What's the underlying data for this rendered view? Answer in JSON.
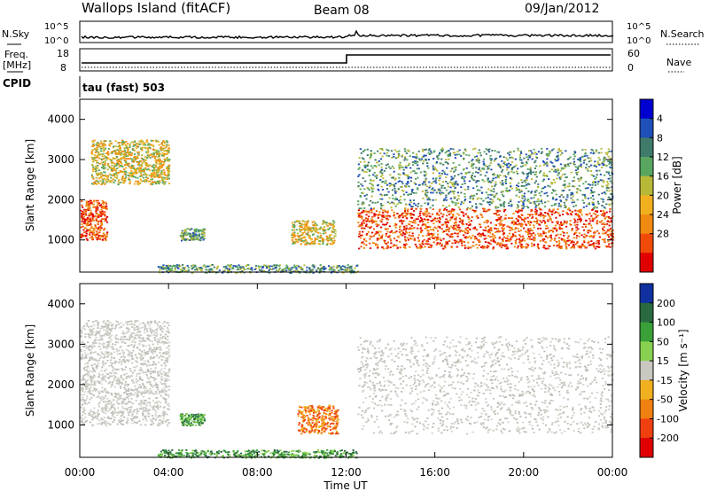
{
  "header": {
    "title": "Wallops Island (fitACF)",
    "beam": "Beam 08",
    "date": "09/Jan/2012"
  },
  "noise_panel": {
    "left_label": "N.Sky",
    "right_label": "N.Search",
    "left_ticks": [
      "10^5",
      "10^0"
    ],
    "right_ticks": [
      "10^5",
      "10^0"
    ]
  },
  "freq_panel": {
    "left_label_line1": "Freq.",
    "left_label_line2": "[MHz]",
    "right_label": "Nave",
    "left_ticks": [
      "18",
      "8"
    ],
    "right_ticks": [
      "60",
      "0"
    ],
    "freq_step_time": "12:00"
  },
  "cpid": {
    "label": "CPID",
    "mode": "tau (fast) 503"
  },
  "chart_data": [
    {
      "type": "heatmap",
      "name": "Power",
      "ylabel": "Slant Range [km]",
      "xlabel": "",
      "y_ticks": [
        "1000",
        "2000",
        "3000",
        "4000"
      ],
      "ylim": [
        200,
        4500
      ],
      "xlim": [
        0,
        24
      ],
      "colorbar_label": "Power [dB]",
      "colorbar_ticks": [
        "4",
        "8",
        "12",
        "16",
        "20",
        "24",
        "28"
      ],
      "colorbar_colors": [
        "#0000d0",
        "#1f4fb8",
        "#3f7a6a",
        "#58a660",
        "#b8b838",
        "#f0b020",
        "#f08a10",
        "#f04a08",
        "#e00000"
      ],
      "echo_regions": [
        {
          "t_start": 0.0,
          "t_end": 1.2,
          "r_min": 1000,
          "r_max": 2000,
          "level": "strong"
        },
        {
          "t_start": 0.5,
          "t_end": 4.0,
          "r_min": 2400,
          "r_max": 3500,
          "level": "medium"
        },
        {
          "t_start": 4.5,
          "t_end": 5.6,
          "r_min": 1000,
          "r_max": 1300,
          "level": "weak"
        },
        {
          "t_start": 9.5,
          "t_end": 11.5,
          "r_min": 900,
          "r_max": 1500,
          "level": "medium"
        },
        {
          "t_start": 12.5,
          "t_end": 24.0,
          "r_min": 800,
          "r_max": 1800,
          "level": "strong"
        },
        {
          "t_start": 12.5,
          "t_end": 24.0,
          "r_min": 1800,
          "r_max": 3300,
          "level": "weak"
        },
        {
          "t_start": 3.5,
          "t_end": 12.5,
          "r_min": 200,
          "r_max": 400,
          "level": "weak"
        }
      ]
    },
    {
      "type": "heatmap",
      "name": "Velocity",
      "ylabel": "Slant Range [km]",
      "xlabel": "Time UT",
      "x_ticks": [
        "00:00",
        "04:00",
        "08:00",
        "12:00",
        "16:00",
        "20:00",
        "00:00"
      ],
      "y_ticks": [
        "1000",
        "2000",
        "3000",
        "4000"
      ],
      "ylim": [
        200,
        4500
      ],
      "xlim": [
        0,
        24
      ],
      "colorbar_label": "Velocity [m s⁻¹]",
      "colorbar_ticks": [
        "200",
        "100",
        "50",
        "15",
        "-15",
        "-50",
        "-100",
        "-200"
      ],
      "colorbar_colors": [
        "#1030a0",
        "#2a6a40",
        "#3aa03a",
        "#88d050",
        "#c8c8c0",
        "#f0b020",
        "#f08010",
        "#f04010",
        "#e00000"
      ],
      "echo_regions": [
        {
          "t_start": 0.0,
          "t_end": 4.0,
          "r_min": 1000,
          "r_max": 3600,
          "level": "ground"
        },
        {
          "t_start": 4.5,
          "t_end": 5.6,
          "r_min": 1000,
          "r_max": 1300,
          "level": "positive"
        },
        {
          "t_start": 9.8,
          "t_end": 11.6,
          "r_min": 800,
          "r_max": 1500,
          "level": "negative"
        },
        {
          "t_start": 12.5,
          "t_end": 24.0,
          "r_min": 800,
          "r_max": 3200,
          "level": "ground"
        },
        {
          "t_start": 3.5,
          "t_end": 12.5,
          "r_min": 200,
          "r_max": 400,
          "level": "positive"
        }
      ]
    }
  ]
}
